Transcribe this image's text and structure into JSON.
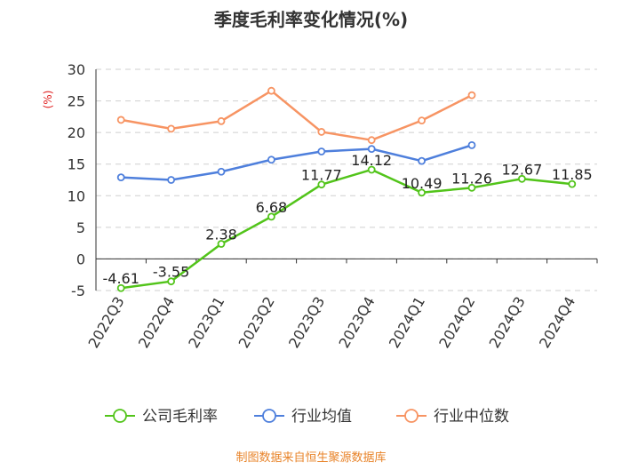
{
  "chart_data": {
    "type": "line",
    "title": "季度毛利率变化情况(%)",
    "ylabel": "(%)",
    "xlabel": "",
    "ylim": [
      -5,
      30
    ],
    "yticks": [
      -5,
      0,
      5,
      10,
      15,
      20,
      25,
      30
    ],
    "grid": true,
    "categories": [
      "2022Q3",
      "2022Q4",
      "2023Q1",
      "2023Q2",
      "2023Q3",
      "2023Q4",
      "2024Q1",
      "2024Q2",
      "2024Q3",
      "2024Q4"
    ],
    "legend_position": "bottom",
    "series": [
      {
        "name": "公司毛利率",
        "color": "#52c41a",
        "values": [
          -4.61,
          -3.55,
          2.38,
          6.68,
          11.77,
          14.12,
          10.49,
          11.26,
          12.67,
          11.85
        ],
        "data_labels": [
          "-4.61",
          "-3.55",
          "2.38",
          "6.68",
          "11.77",
          "14.12",
          "10.49",
          "11.26",
          "12.67",
          "11.85"
        ]
      },
      {
        "name": "行业均值",
        "color": "#4e7fdc",
        "values": [
          12.9,
          12.5,
          13.8,
          15.7,
          17.0,
          17.4,
          15.5,
          18.0,
          null,
          null
        ]
      },
      {
        "name": "行业中位数",
        "color": "#f79463",
        "values": [
          22.0,
          20.6,
          21.8,
          26.6,
          20.1,
          18.8,
          21.9,
          25.9,
          null,
          null
        ]
      }
    ]
  },
  "source_note": "制图数据来自恒生聚源数据库",
  "source_color": "#e8842a"
}
